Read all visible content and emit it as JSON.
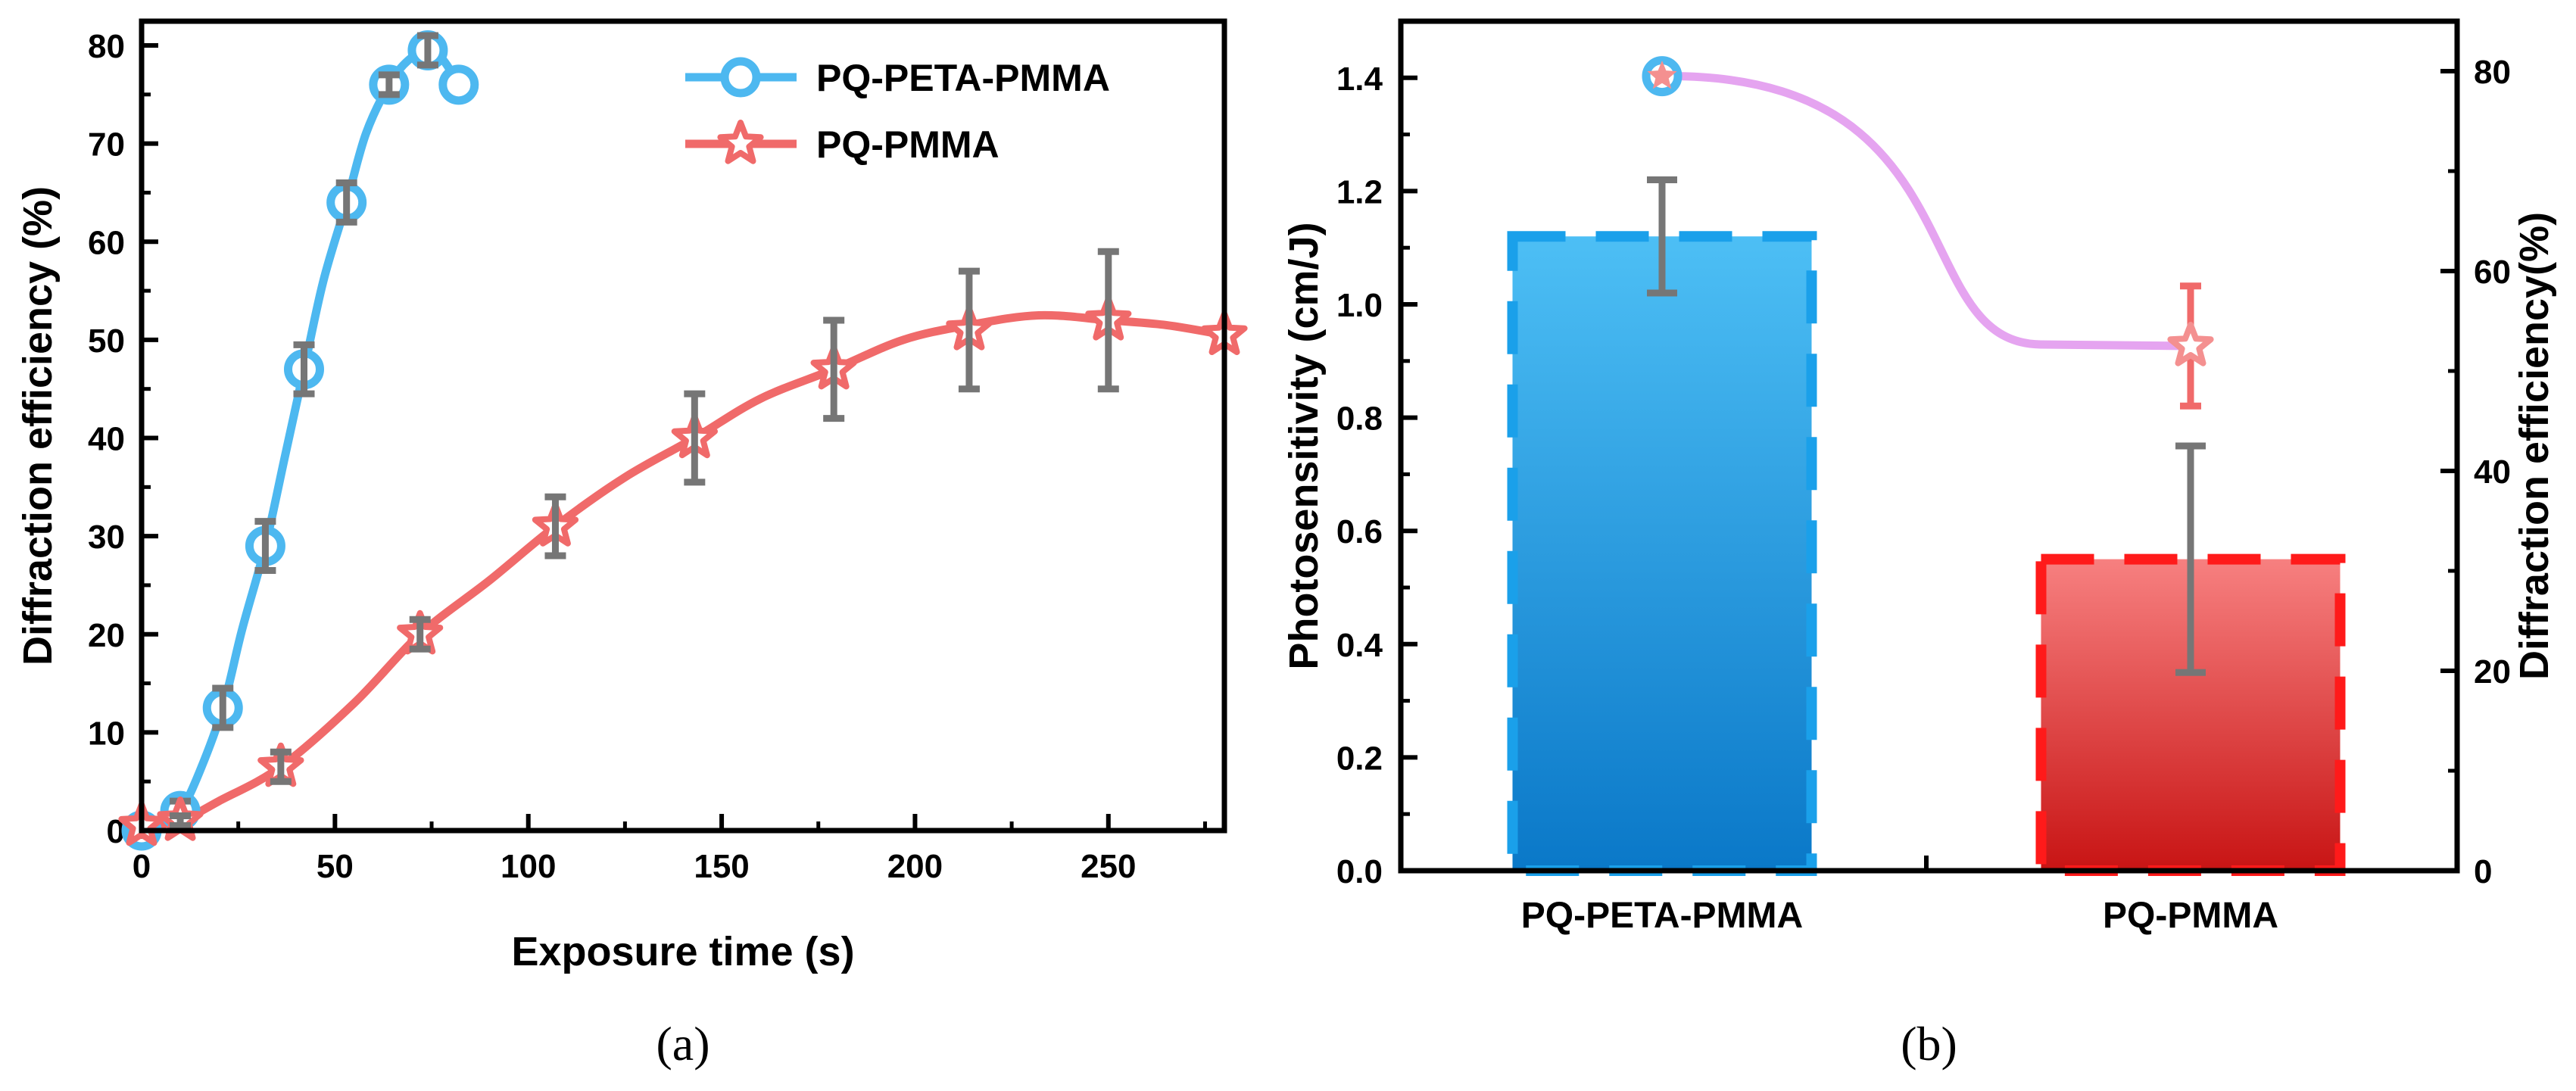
{
  "chart_data": [
    {
      "type": "line",
      "panel_label": "(a)",
      "xlabel": "Exposure time (s)",
      "ylabel": "Diffraction efficiency (%)",
      "xlim": [
        0,
        280
      ],
      "ylim": [
        0,
        80
      ],
      "xticks": [
        "0",
        "50",
        "100",
        "150",
        "200",
        "250"
      ],
      "xtick_values": [
        0,
        50,
        100,
        150,
        200,
        250
      ],
      "yticks": [
        "0",
        "10",
        "20",
        "30",
        "40",
        "50",
        "60",
        "70",
        "80"
      ],
      "ytick_values": [
        0,
        10,
        20,
        30,
        40,
        50,
        60,
        70,
        80
      ],
      "legend_position": "top-right",
      "series": [
        {
          "name": "PQ-PETA-PMMA",
          "color": "#4db8f0",
          "marker": "circle",
          "x": [
            0,
            10,
            21,
            32,
            42,
            53,
            64,
            74,
            82
          ],
          "y": [
            0,
            2,
            12.5,
            29,
            47,
            64,
            76,
            79.5,
            76
          ],
          "err": [
            0.5,
            1,
            2,
            2.5,
            2.5,
            2,
            1,
            1.5,
            0
          ],
          "curve_x": [
            0,
            5,
            10,
            15,
            21,
            26,
            32,
            37,
            42,
            47,
            53,
            58,
            64,
            69,
            74,
            78,
            82
          ],
          "curve_y": [
            0.5,
            0.8,
            2,
            6,
            12.5,
            20.5,
            29,
            38,
            47,
            56,
            64,
            71,
            76,
            78.5,
            79.5,
            78.5,
            76
          ]
        },
        {
          "name": "PQ-PMMA",
          "color": "#f06a6a",
          "marker": "star",
          "x": [
            0,
            10,
            36,
            72,
            107,
            143,
            179,
            214,
            250,
            280
          ],
          "y": [
            0.5,
            1,
            6.5,
            20,
            31,
            40,
            47,
            51,
            52,
            50.5
          ],
          "err": [
            0,
            0.5,
            1.5,
            1.5,
            3,
            4.5,
            5,
            6,
            7,
            0
          ],
          "curve_x": [
            0,
            10,
            20,
            36,
            55,
            72,
            90,
            107,
            125,
            143,
            160,
            179,
            197,
            214,
            232,
            250,
            265,
            280
          ],
          "curve_y": [
            0.5,
            1,
            3,
            6.5,
            13,
            20,
            25.5,
            31,
            36,
            40,
            44,
            47,
            50,
            51.5,
            52.5,
            52,
            51.5,
            50.5
          ]
        }
      ]
    },
    {
      "type": "bar",
      "panel_label": "(b)",
      "categories": [
        "PQ-PETA-PMMA",
        "PQ-PMMA"
      ],
      "ylabel": "Photosensitivity (cm/J)",
      "y2label": "Diffraction efficiency(%)",
      "ylim": [
        0,
        1.5
      ],
      "y2lim": [
        0,
        85
      ],
      "yticks": [
        "0.0",
        "0.2",
        "0.4",
        "0.6",
        "0.8",
        "1.0",
        "1.2",
        "1.4"
      ],
      "ytick_values": [
        0,
        0.2,
        0.4,
        0.6,
        0.8,
        1.0,
        1.2,
        1.4
      ],
      "y2ticks": [
        "0",
        "20",
        "40",
        "60",
        "80"
      ],
      "y2tick_values": [
        0,
        20,
        40,
        60,
        80
      ],
      "bars": [
        {
          "category": "PQ-PETA-PMMA",
          "value": 1.12,
          "err": 0.1,
          "color_top": "#4dbff5",
          "color_bottom": "#0a78c8",
          "edge": "#1aa0ea"
        },
        {
          "category": "PQ-PMMA",
          "value": 0.55,
          "err": 0.2,
          "color_top": "#f78080",
          "color_bottom": "#c81414",
          "edge": "#ff1a1a"
        }
      ],
      "line_series": {
        "name": "Diffraction efficiency",
        "color": "#e5a4f0",
        "values": [
          79.5,
          52.5
        ],
        "err": [
          0,
          6
        ]
      }
    }
  ]
}
